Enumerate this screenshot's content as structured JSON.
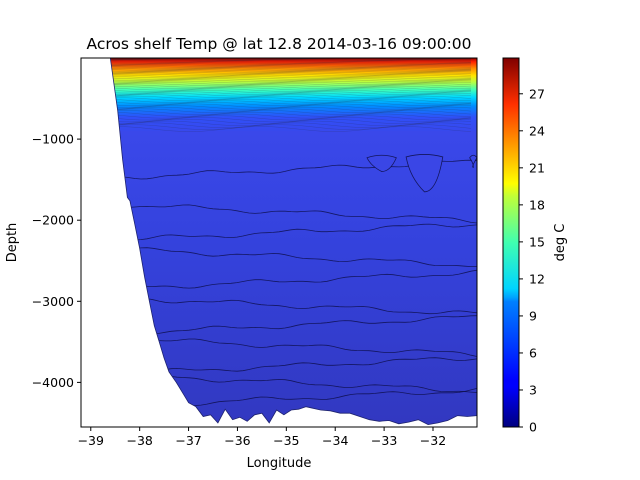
{
  "chart_data": {
    "type": "heatmap",
    "title": "Acros shelf Temp @ lat 12.8 2014-03-16 09:00:00",
    "xlabel": "Longitude",
    "ylabel": "Depth",
    "xlim": [
      -39.2,
      -31.1
    ],
    "ylim": [
      -4550,
      0
    ],
    "xticks": [
      -39,
      -38,
      -37,
      -36,
      -35,
      -34,
      -33,
      -32
    ],
    "yticks": [
      -1000,
      -2000,
      -3000,
      -4000
    ],
    "colorbar": {
      "label": "deg C",
      "colormap": "jet",
      "range": [
        0,
        29.9
      ],
      "ticks": [
        0,
        3,
        6,
        9,
        12,
        15,
        18,
        21,
        24,
        27
      ]
    },
    "seafloor": {
      "lon": [
        -38.6,
        -38.45,
        -38.35,
        -38.25,
        -38.2,
        -38.1,
        -38.0,
        -37.9,
        -37.8,
        -37.7,
        -37.6,
        -37.5,
        -37.4,
        -37.25,
        -37.1,
        -37.0,
        -36.85,
        -36.7,
        -36.55,
        -36.4,
        -36.25,
        -36.1,
        -35.95,
        -35.8,
        -35.65,
        -35.5,
        -35.35,
        -35.2,
        -35.05,
        -34.9,
        -34.75,
        -34.6,
        -34.45,
        -34.3,
        -34.1,
        -33.9,
        -33.7,
        -33.5,
        -33.3,
        -33.1,
        -32.9,
        -32.7,
        -32.5,
        -32.3,
        -32.1,
        -31.9,
        -31.7,
        -31.5,
        -31.3,
        -31.1
      ],
      "depth": [
        0,
        -650,
        -1250,
        -1720,
        -1760,
        -2050,
        -2350,
        -2700,
        -3000,
        -3300,
        -3500,
        -3700,
        -3870,
        -4000,
        -4150,
        -4250,
        -4300,
        -4420,
        -4400,
        -4500,
        -4330,
        -4460,
        -4430,
        -4480,
        -4400,
        -4380,
        -4500,
        -4340,
        -4400,
        -4340,
        -4330,
        -4300,
        -4320,
        -4340,
        -4350,
        -4380,
        -4380,
        -4420,
        -4460,
        -4480,
        -4470,
        -4510,
        -4490,
        -4460,
        -4520,
        -4500,
        -4470,
        -4410,
        -4420,
        -4410
      ]
    },
    "isotherms_shallow_range_m": [
      0,
      -900
    ],
    "isotherm_depths_deep_m": [
      -1380,
      -1900,
      -2150,
      -2450,
      -2750,
      -3050,
      -3300,
      -3550,
      -3800,
      -4000,
      -4200
    ],
    "cold_patches": [
      {
        "lon": [
          -33.35,
          -32.75
        ],
        "depth_top": -1230,
        "depth_bottom": -1400
      },
      {
        "lon": [
          -32.55,
          -31.8
        ],
        "depth_top": -1220,
        "depth_bottom": -1650
      },
      {
        "lon": [
          -31.25,
          -31.1
        ],
        "depth_top": -1230,
        "depth_bottom": -1350
      }
    ]
  }
}
